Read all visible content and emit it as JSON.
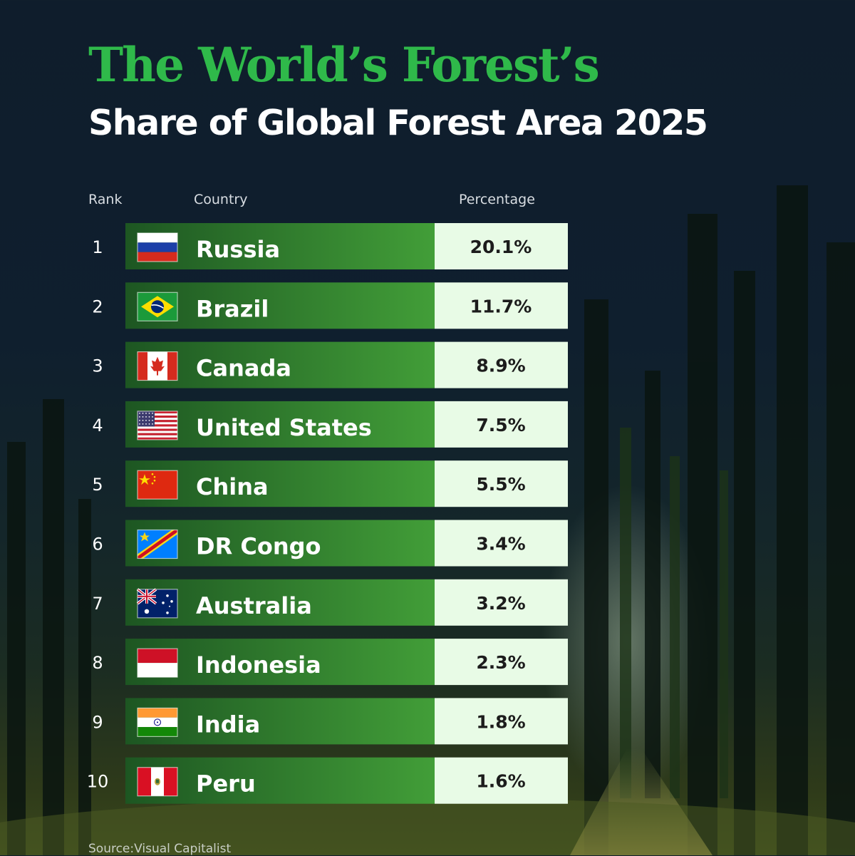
{
  "title": "The World’s Forest’s",
  "subtitle": "Share of Global Forest Area 2025",
  "headers": {
    "rank": "Rank",
    "country": "Country",
    "percentage": "Percentage"
  },
  "source": "Source:Visual Capitalist",
  "colors": {
    "title_green": "#2fb94a",
    "bar_green_dark": "#1f5a24",
    "bar_green_light": "#3f9a36",
    "value_cell": "#e8fbe6"
  },
  "chart_data": {
    "type": "table",
    "columns": [
      "Rank",
      "Country",
      "Percentage"
    ],
    "rows": [
      {
        "rank": "1",
        "country": "Russia",
        "flag": "russia-flag",
        "value": 20.1,
        "label": "20.1%"
      },
      {
        "rank": "2",
        "country": "Brazil",
        "flag": "brazil-flag",
        "value": 11.7,
        "label": "11.7%"
      },
      {
        "rank": "3",
        "country": "Canada",
        "flag": "canada-flag",
        "value": 8.9,
        "label": "8.9%"
      },
      {
        "rank": "4",
        "country": "United States",
        "flag": "united-states-flag",
        "value": 7.5,
        "label": "7.5%"
      },
      {
        "rank": "5",
        "country": "China",
        "flag": "china-flag",
        "value": 5.5,
        "label": "5.5%"
      },
      {
        "rank": "6",
        "country": "DR Congo",
        "flag": "dr-congo-flag",
        "value": 3.4,
        "label": "3.4%"
      },
      {
        "rank": "7",
        "country": "Australia",
        "flag": "australia-flag",
        "value": 3.2,
        "label": "3.2%"
      },
      {
        "rank": "8",
        "country": "Indonesia",
        "flag": "indonesia-flag",
        "value": 2.3,
        "label": "2.3%"
      },
      {
        "rank": "9",
        "country": "India",
        "flag": "india-flag",
        "value": 1.8,
        "label": "1.8%"
      },
      {
        "rank": "10",
        "country": "Peru",
        "flag": "peru-flag",
        "value": 1.6,
        "label": "1.6%"
      }
    ]
  }
}
